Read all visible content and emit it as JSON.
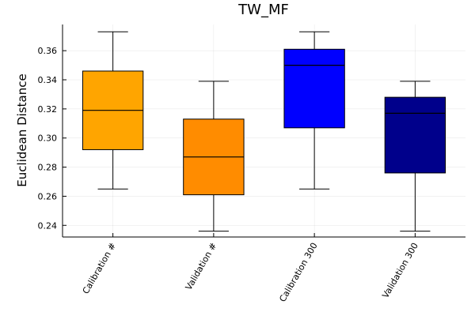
{
  "chart_data": {
    "type": "box",
    "title": "TW_MF",
    "xlabel": "",
    "ylabel": "Euclidean Distance",
    "ylim": [
      0.232,
      0.378
    ],
    "yticks": [
      0.24,
      0.26,
      0.28,
      0.3,
      0.32,
      0.34,
      0.36
    ],
    "ytick_labels": [
      "0.24",
      "0.26",
      "0.28",
      "0.30",
      "0.32",
      "0.34",
      "0.36"
    ],
    "grid": true,
    "legend": "none",
    "categories": [
      "Calibration #",
      "Validation #",
      "Calibration 300",
      "Validation 300"
    ],
    "boxes": [
      {
        "label": "Calibration #",
        "whisker_low": 0.265,
        "q1": 0.292,
        "median": 0.319,
        "q3": 0.346,
        "whisker_high": 0.373,
        "color": "#FFA500"
      },
      {
        "label": "Validation #",
        "whisker_low": 0.236,
        "q1": 0.261,
        "median": 0.287,
        "q3": 0.313,
        "whisker_high": 0.339,
        "color": "#FF8C00"
      },
      {
        "label": "Calibration 300",
        "whisker_low": 0.265,
        "q1": 0.307,
        "median": 0.35,
        "q3": 0.361,
        "whisker_high": 0.373,
        "color": "#0000FF"
      },
      {
        "label": "Validation 300",
        "whisker_low": 0.236,
        "q1": 0.276,
        "median": 0.317,
        "q3": 0.328,
        "whisker_high": 0.339,
        "color": "#00008B"
      }
    ]
  }
}
